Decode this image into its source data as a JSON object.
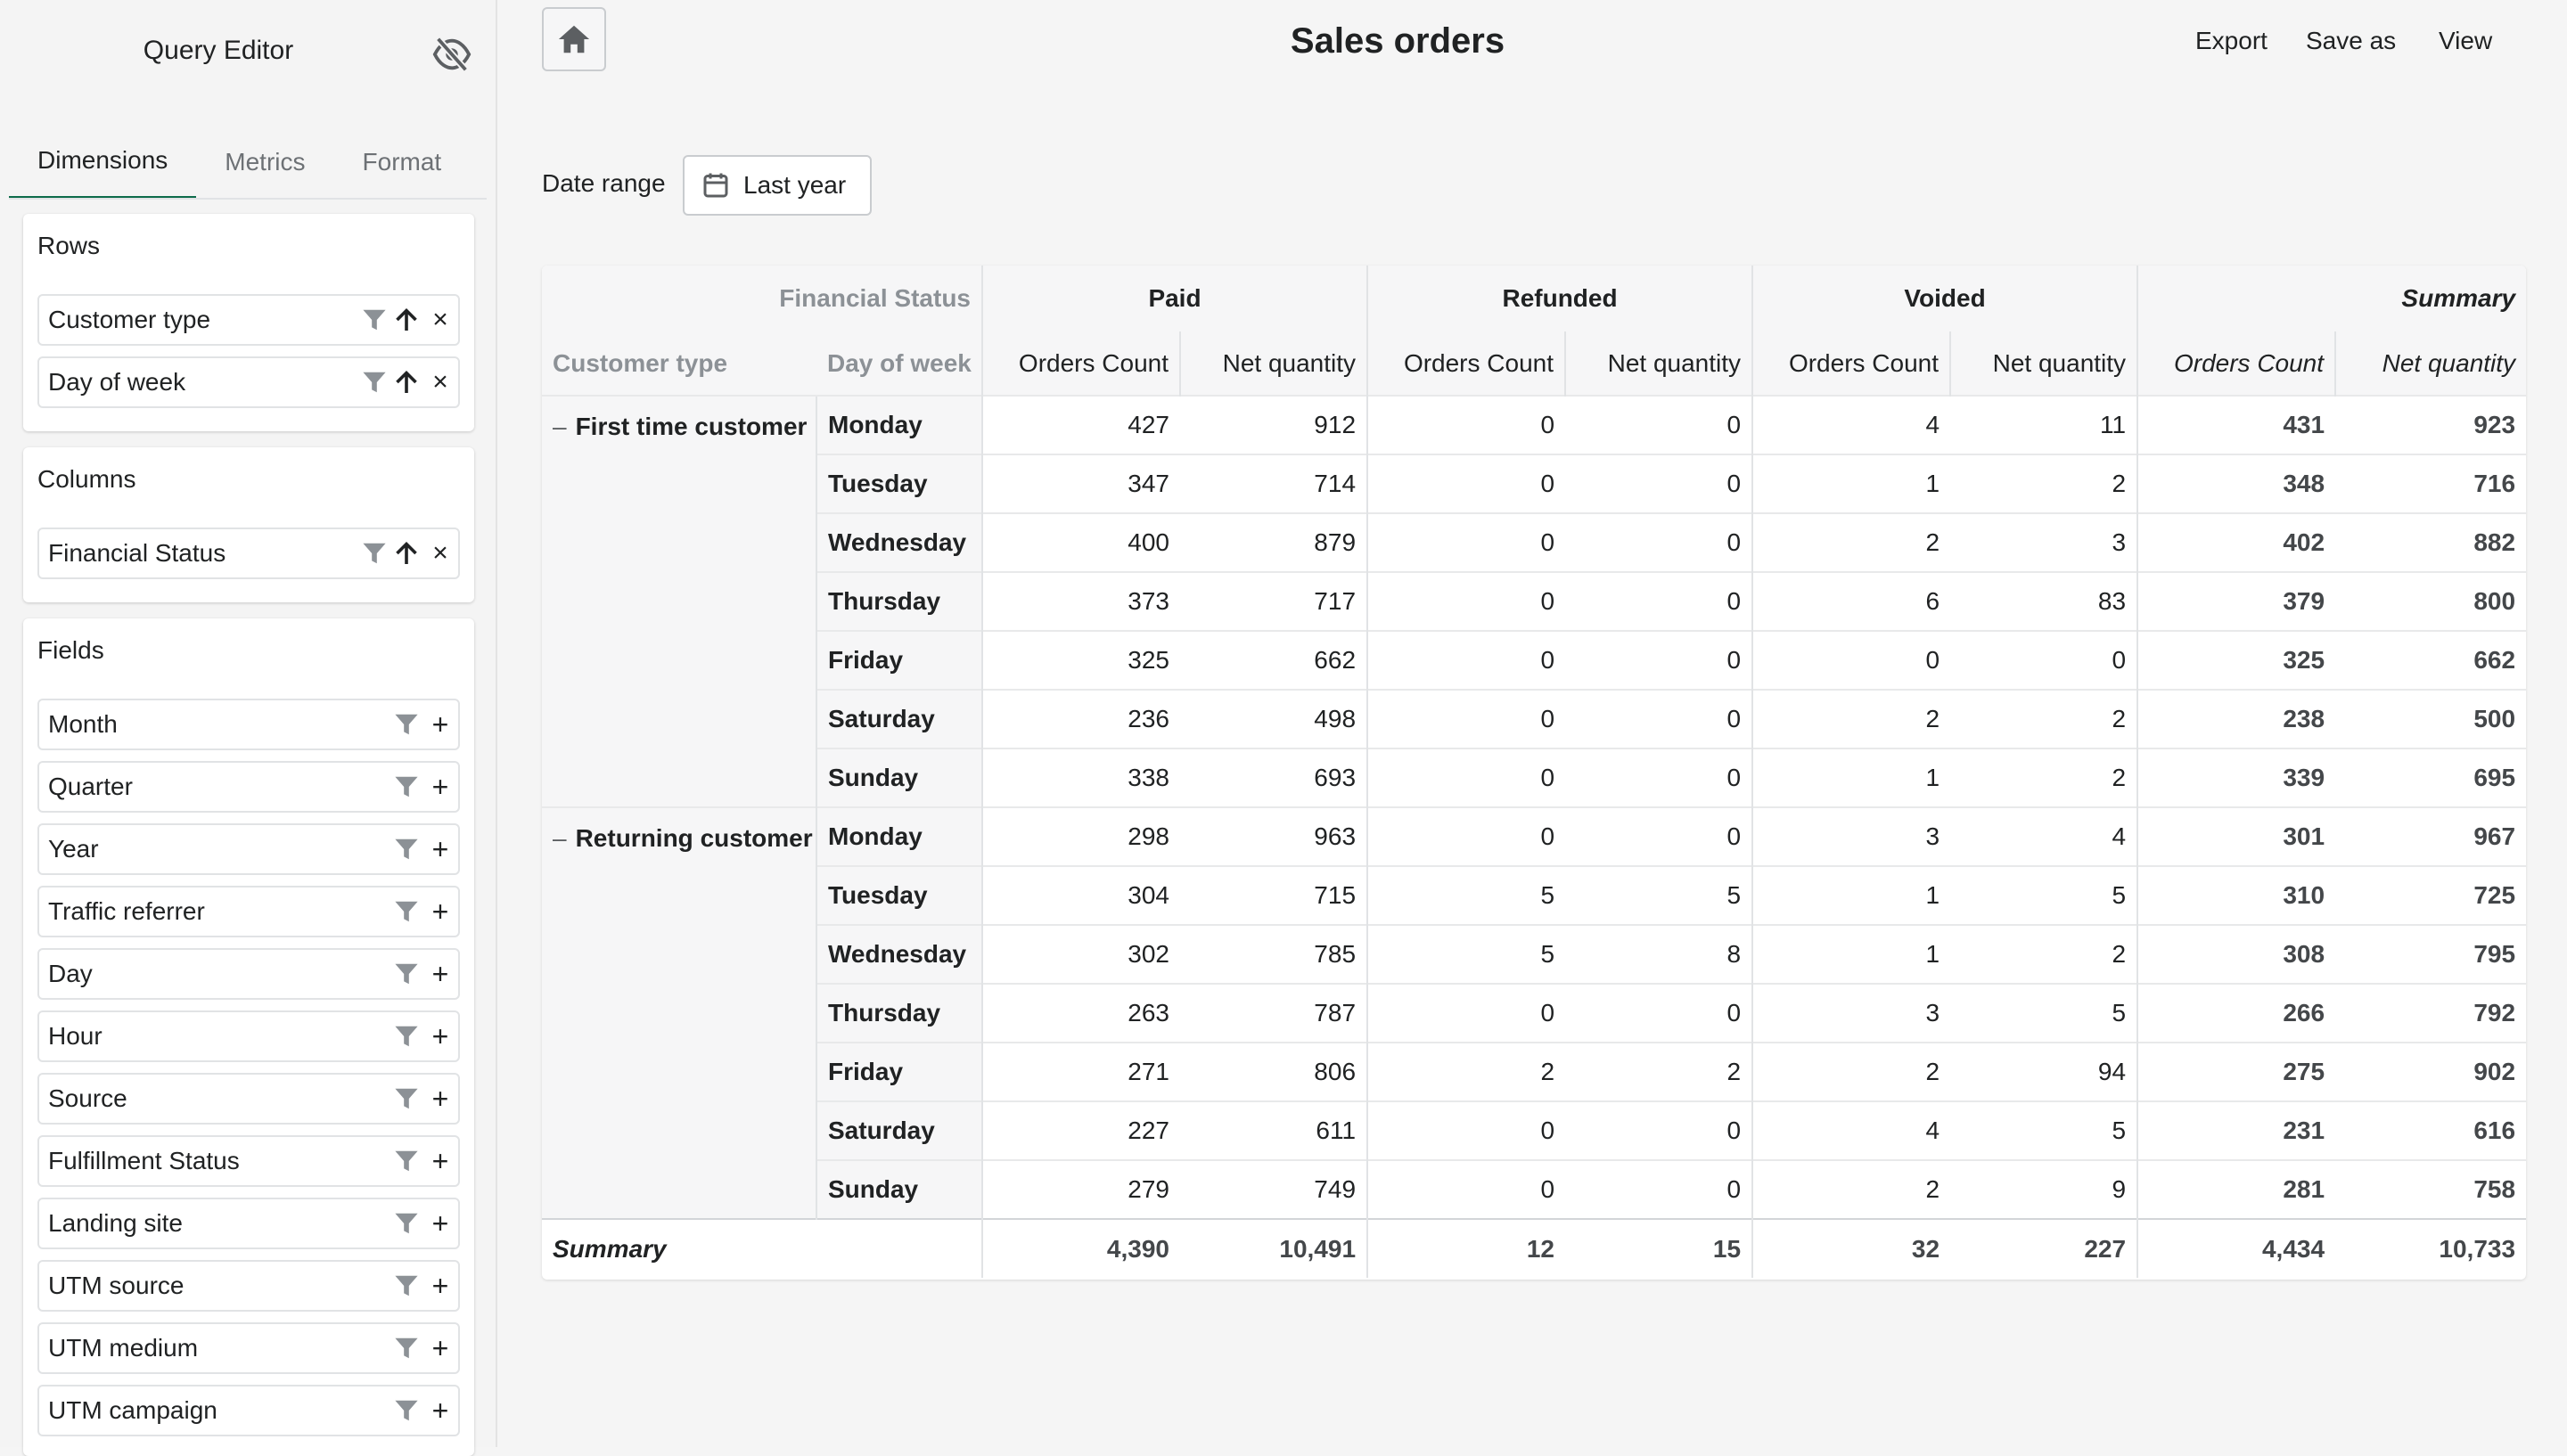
{
  "sidebar": {
    "title": "Query Editor",
    "tabs": [
      "Dimensions",
      "Metrics",
      "Format"
    ],
    "rows": {
      "title": "Rows",
      "items": [
        "Customer type",
        "Day of week"
      ]
    },
    "columns": {
      "title": "Columns",
      "items": [
        "Financial Status"
      ]
    },
    "fields": {
      "title": "Fields",
      "items": [
        "Month",
        "Quarter",
        "Year",
        "Traffic referrer",
        "Day",
        "Hour",
        "Source",
        "Fulfillment Status",
        "Landing site",
        "UTM source",
        "UTM medium",
        "UTM campaign"
      ]
    }
  },
  "header": {
    "title": "Sales orders",
    "actions": [
      "Export",
      "Save as",
      "View"
    ]
  },
  "filters": {
    "date_label": "Date range",
    "date_value": "Last year"
  },
  "table": {
    "corner_label": "Financial Status",
    "row_headers": [
      "Customer type",
      "Day of week"
    ],
    "groups": [
      "Paid",
      "Refunded",
      "Voided",
      "Summary"
    ],
    "metrics": [
      "Orders Count",
      "Net quantity"
    ],
    "collapse_symbol": "–",
    "sections": [
      {
        "customer_type": "First time customer",
        "rows": [
          {
            "day": "Monday",
            "v": [
              "427",
              "912",
              "0",
              "0",
              "4",
              "11",
              "431",
              "923"
            ]
          },
          {
            "day": "Tuesday",
            "v": [
              "347",
              "714",
              "0",
              "0",
              "1",
              "2",
              "348",
              "716"
            ]
          },
          {
            "day": "Wednesday",
            "v": [
              "400",
              "879",
              "0",
              "0",
              "2",
              "3",
              "402",
              "882"
            ]
          },
          {
            "day": "Thursday",
            "v": [
              "373",
              "717",
              "0",
              "0",
              "6",
              "83",
              "379",
              "800"
            ]
          },
          {
            "day": "Friday",
            "v": [
              "325",
              "662",
              "0",
              "0",
              "0",
              "0",
              "325",
              "662"
            ]
          },
          {
            "day": "Saturday",
            "v": [
              "236",
              "498",
              "0",
              "0",
              "2",
              "2",
              "238",
              "500"
            ]
          },
          {
            "day": "Sunday",
            "v": [
              "338",
              "693",
              "0",
              "0",
              "1",
              "2",
              "339",
              "695"
            ]
          }
        ]
      },
      {
        "customer_type": "Returning customer",
        "rows": [
          {
            "day": "Monday",
            "v": [
              "298",
              "963",
              "0",
              "0",
              "3",
              "4",
              "301",
              "967"
            ]
          },
          {
            "day": "Tuesday",
            "v": [
              "304",
              "715",
              "5",
              "5",
              "1",
              "5",
              "310",
              "725"
            ]
          },
          {
            "day": "Wednesday",
            "v": [
              "302",
              "785",
              "5",
              "8",
              "1",
              "2",
              "308",
              "795"
            ]
          },
          {
            "day": "Thursday",
            "v": [
              "263",
              "787",
              "0",
              "0",
              "3",
              "5",
              "266",
              "792"
            ]
          },
          {
            "day": "Friday",
            "v": [
              "271",
              "806",
              "2",
              "2",
              "2",
              "94",
              "275",
              "902"
            ]
          },
          {
            "day": "Saturday",
            "v": [
              "227",
              "611",
              "0",
              "0",
              "4",
              "5",
              "231",
              "616"
            ]
          },
          {
            "day": "Sunday",
            "v": [
              "279",
              "749",
              "0",
              "0",
              "2",
              "9",
              "281",
              "758"
            ]
          }
        ]
      }
    ],
    "summary": {
      "label": "Summary",
      "v": [
        "4,390",
        "10,491",
        "12",
        "15",
        "32",
        "227",
        "4,434",
        "10,733"
      ]
    }
  }
}
